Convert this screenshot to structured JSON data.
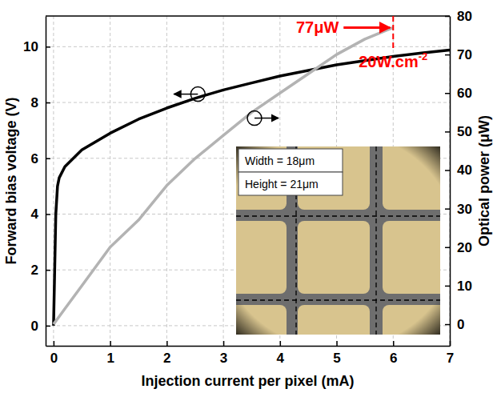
{
  "chart_data": {
    "type": "line",
    "x_label": "Injection current per pixel (mA)",
    "y_label": "Forward bias voltage (V)",
    "y2_label": "Optical power (μW)",
    "x": [
      0,
      0.02,
      0.04,
      0.07,
      0.1,
      0.2,
      0.5,
      1,
      1.5,
      2,
      2.5,
      3,
      3.5,
      4,
      4.5,
      5,
      5.5,
      6,
      6.5,
      7
    ],
    "series": [
      {
        "name": "Forward bias voltage",
        "color": "#000000",
        "axis": "y",
        "values": [
          0,
          2,
          4,
          5,
          5.3,
          5.7,
          6.3,
          6.9,
          7.4,
          7.8,
          8.15,
          8.45,
          8.7,
          8.95,
          9.15,
          9.35,
          9.5,
          9.65,
          9.77,
          9.88
        ]
      },
      {
        "name": "Optical power",
        "color": "#b3b3b3",
        "axis": "y2",
        "values": [
          0,
          0.4,
          0.8,
          1.4,
          2,
          4,
          10,
          20,
          27,
          36,
          43,
          49,
          55,
          60,
          65,
          70,
          74,
          77,
          null,
          null
        ]
      }
    ],
    "xlim": [
      -0.14,
      7
    ],
    "xticks": [
      0,
      1,
      2,
      3,
      4,
      5,
      6,
      7
    ],
    "ylim": [
      -0.72,
      11.1
    ],
    "yticks": [
      0,
      2,
      4,
      6,
      8,
      10
    ],
    "y2lim": [
      -5.6,
      80
    ],
    "y2ticks": [
      0,
      10,
      20,
      30,
      40,
      50,
      60,
      70,
      80
    ],
    "grid": true,
    "annotations": [
      {
        "text": "77μW",
        "x": 6,
        "y": 77,
        "color": "#ff0000"
      },
      {
        "text": "20W.cm",
        "superscript": "-2",
        "x": 6,
        "color": "#ff0000"
      }
    ],
    "inset_texts": [
      "Width = 18μm",
      "Height = 21μm"
    ]
  }
}
